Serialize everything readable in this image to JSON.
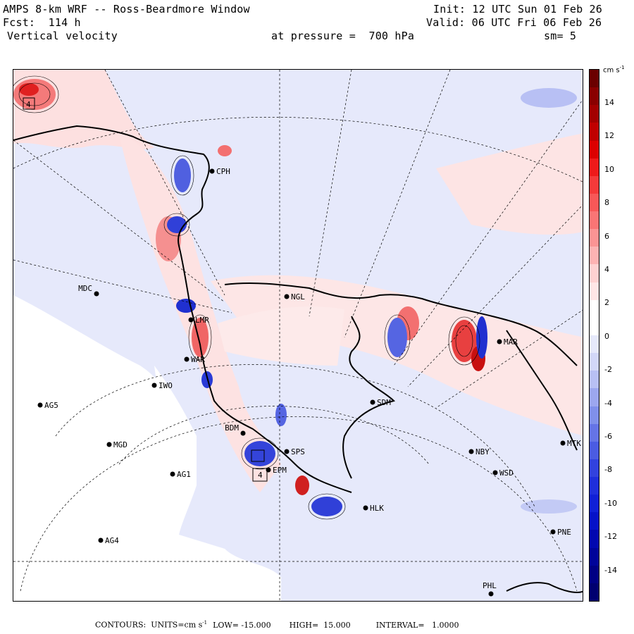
{
  "header": {
    "model": "AMPS 8-km WRF -- Ross-Beardmore Window",
    "fcst_label": "Fcst:",
    "fcst_hours": "114 h",
    "field": "Vertical velocity",
    "init": "Init: 12 UTC Sun 01 Feb 26",
    "valid": "Valid: 06 UTC Fri 06 Feb 26",
    "pressure": "at pressure =  700 hPa",
    "smoothing": "sm= 5"
  },
  "colorbar": {
    "units": "cm s",
    "units_exp": "-1",
    "labels": [
      "14",
      "12",
      "10",
      "8",
      "6",
      "4",
      "2",
      "0",
      "-2",
      "-4",
      "-6",
      "-8",
      "-10",
      "-12",
      "-14"
    ],
    "levels": [
      "#6b0000",
      "#8a0000",
      "#a30000",
      "#c00000",
      "#dc0000",
      "#ee1a1a",
      "#f53a3a",
      "#f85858",
      "#fa7575",
      "#fb9494",
      "#fdb3b3",
      "#fed2d2",
      "#ffe6e6",
      "#ffffff",
      "#ffffff",
      "#e6e9fb",
      "#d2d7f8",
      "#b8c0f4",
      "#9ca7ef",
      "#8090ea",
      "#6574e6",
      "#4b5ce2",
      "#3242de",
      "#1f2fdb",
      "#1020d6",
      "#0612c8",
      "#0208b0",
      "#00049a",
      "#000084",
      "#000070"
    ]
  },
  "stations": [
    {
      "id": "CPH"
    },
    {
      "id": "MDC"
    },
    {
      "id": "NGL"
    },
    {
      "id": "LMR"
    },
    {
      "id": "WAR"
    },
    {
      "id": "IWO"
    },
    {
      "id": "AG5"
    },
    {
      "id": "SDM"
    },
    {
      "id": "BDM"
    },
    {
      "id": "MGD"
    },
    {
      "id": "SPS"
    },
    {
      "id": "EPM"
    },
    {
      "id": "AG1"
    },
    {
      "id": "NBY"
    },
    {
      "id": "MTK"
    },
    {
      "id": "WSD"
    },
    {
      "id": "HLK"
    },
    {
      "id": "AG4"
    },
    {
      "id": "PNE"
    },
    {
      "id": "PHL"
    },
    {
      "id": "MAR"
    }
  ],
  "map_labels": {
    "box_a": "4",
    "box_b": "4"
  },
  "footer": {
    "contours": "CONTOURS:  UNITS=cm s",
    "units_exp": "-1",
    "low": "LOW= -15.000",
    "high": "HIGH=  15.000",
    "interval": "INTERVAL=   1.0000"
  }
}
